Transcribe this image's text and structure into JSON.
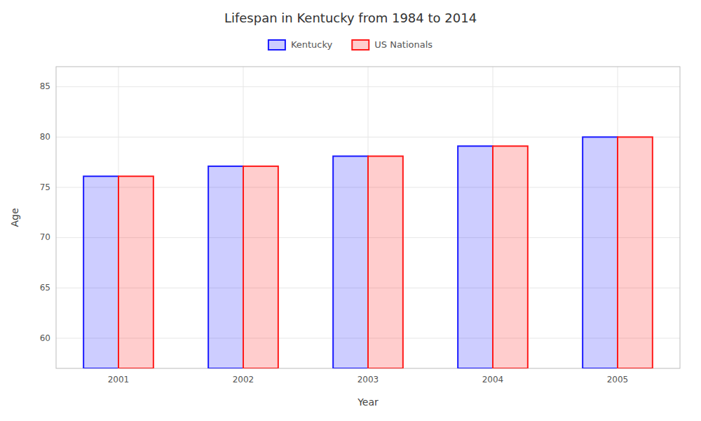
{
  "chart_data": {
    "type": "bar",
    "title": "Lifespan in Kentucky from 1984 to 2014",
    "x_label": "Year",
    "y_label": "Age",
    "categories": [
      "2001",
      "2002",
      "2003",
      "2004",
      "2005"
    ],
    "series": [
      {
        "name": "Kentucky",
        "color": "#1a1aff",
        "values": [
          76.1,
          77.1,
          78.1,
          79.1,
          80.0
        ]
      },
      {
        "name": "US Nationals",
        "color": "#ff1a1a",
        "values": [
          76.1,
          77.1,
          78.1,
          79.1,
          80.0
        ]
      }
    ],
    "ylim": [
      57,
      87
    ],
    "yticks": [
      60,
      65,
      70,
      75,
      80,
      85
    ],
    "grid": true,
    "legend": "top"
  }
}
